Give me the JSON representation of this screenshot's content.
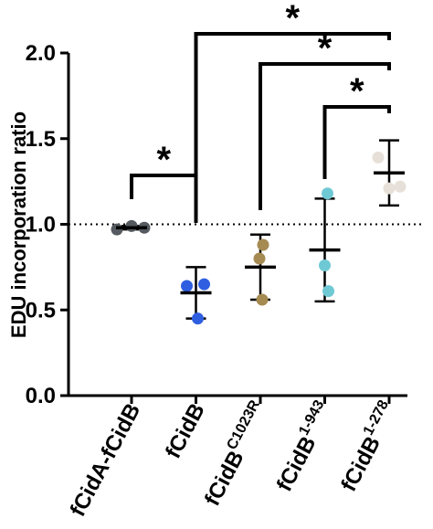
{
  "chart_data": {
    "type": "scatter",
    "title": "",
    "ylabel": "EDU incorporation ratio",
    "xlabel": "",
    "ylim": [
      0,
      2.0
    ],
    "yticks": [
      0.0,
      0.5,
      1.0,
      1.5,
      2.0
    ],
    "ytick_labels": [
      "0.0",
      "0.5",
      "1.0",
      "1.5",
      "2.0"
    ],
    "reference_line": 1.0,
    "categories": [
      {
        "main": "fCidA-fCidB",
        "sup": ""
      },
      {
        "main": "fCidB",
        "sup": ""
      },
      {
        "main": "fCidB",
        "sup": "C1023R"
      },
      {
        "main": "fCidB",
        "sup": "1-943"
      },
      {
        "main": "fCidB",
        "sup": "1-278"
      }
    ],
    "groups": [
      {
        "color": "#555a60",
        "points": [
          0.97,
          0.99,
          0.98
        ],
        "mean": 0.98,
        "error": 0.01
      },
      {
        "color": "#2f5fe0",
        "points": [
          0.64,
          0.65,
          0.45
        ],
        "mean": 0.6,
        "error": 0.15
      },
      {
        "color": "#a58a52",
        "points": [
          0.88,
          0.8,
          0.56
        ],
        "mean": 0.75,
        "error": 0.19
      },
      {
        "color": "#6ec9d4",
        "points": [
          1.18,
          0.76,
          0.61
        ],
        "mean": 0.85,
        "error": 0.3
      },
      {
        "color": "#e6e0d8",
        "points": [
          1.39,
          1.22,
          1.21
        ],
        "mean": 1.3,
        "error": 0.19
      }
    ],
    "significance": [
      {
        "from": 0,
        "to": 1,
        "label": "*"
      },
      {
        "from": 1,
        "to": 4,
        "label": "*"
      },
      {
        "from": 2,
        "to": 4,
        "label": "*"
      },
      {
        "from": 3,
        "to": 4,
        "label": "*"
      }
    ]
  }
}
